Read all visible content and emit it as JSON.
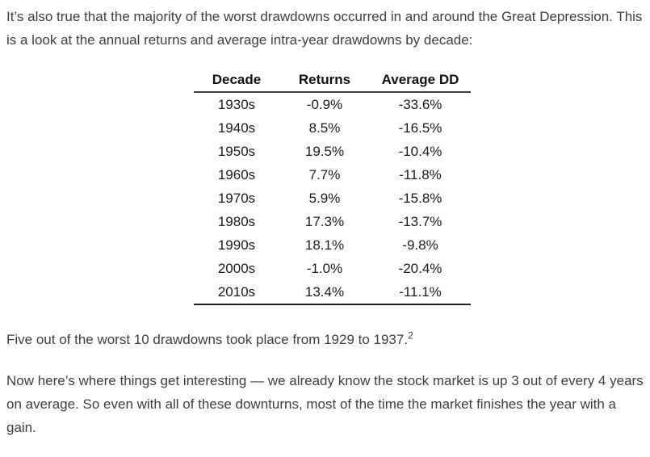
{
  "article": {
    "paragraph_intro": "It’s also true that the majority of the worst drawdowns occurred in and around the Great Depression. This is a look at the annual returns and average intra-year drawdowns by decade:",
    "paragraph_drawdowns": "Five out of the worst 10 drawdowns took place from 1929 to 1937.",
    "footnote_ref": "2",
    "paragraph_interesting": "Now here’s where things get interesting — we already know the stock market is up 3 out of every 4 years on average. So even with all of these downturns, most of the time the market finishes the year with a gain."
  },
  "colors": {
    "background": "#ffffff",
    "body_text": "#3c4043",
    "table_text": "#1c1c1c",
    "table_rule": "#3f3f3f"
  },
  "chart_data": {
    "type": "table",
    "columns": [
      "Decade",
      "Returns",
      "Average DD"
    ],
    "rows": [
      [
        "1930s",
        "-0.9%",
        "-33.6%"
      ],
      [
        "1940s",
        "8.5%",
        "-16.5%"
      ],
      [
        "1950s",
        "19.5%",
        "-10.4%"
      ],
      [
        "1960s",
        "7.7%",
        "-11.8%"
      ],
      [
        "1970s",
        "5.9%",
        "-15.8%"
      ],
      [
        "1980s",
        "17.3%",
        "-13.7%"
      ],
      [
        "1990s",
        "18.1%",
        "-9.8%"
      ],
      [
        "2000s",
        "-1.0%",
        "-20.4%"
      ],
      [
        "2010s",
        "13.4%",
        "-11.1%"
      ]
    ]
  }
}
